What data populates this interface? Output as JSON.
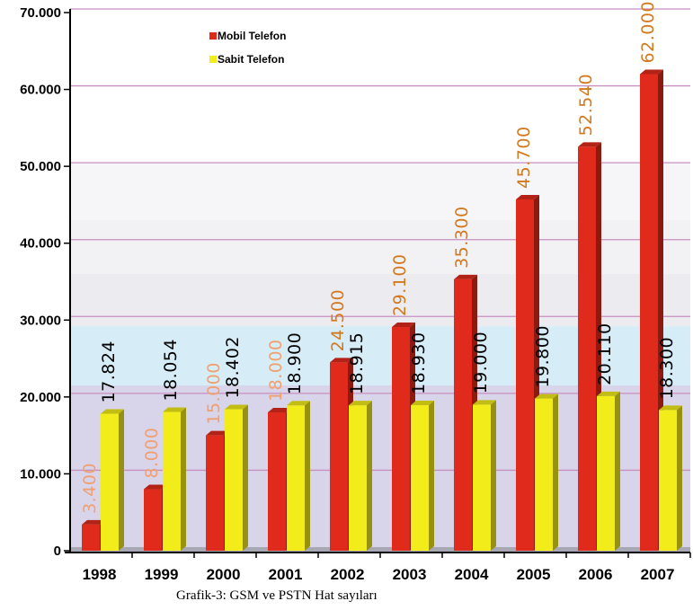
{
  "chart_data": {
    "type": "bar",
    "categories": [
      "1998",
      "1999",
      "2000",
      "2001",
      "2002",
      "2003",
      "2004",
      "2005",
      "2006",
      "2007"
    ],
    "series": [
      {
        "name": "Mobil Telefon",
        "color": "#e02a1c",
        "values": [
          3400,
          8000,
          15000,
          18000,
          24500,
          29100,
          35300,
          45700,
          52540,
          62000
        ],
        "labels": [
          "3.400",
          "8.000",
          "15.000",
          "18.000",
          "24.500",
          "29.100",
          "35.300",
          "45.700",
          "52.540",
          "62.000"
        ]
      },
      {
        "name": "Sabit Telefon",
        "color": "#f2ec1a",
        "values": [
          17824,
          18054,
          18402,
          18900,
          18915,
          18930,
          19000,
          19800,
          20110,
          18300
        ],
        "labels": [
          "17.824",
          "18.054",
          "18.402",
          "18.900",
          "18.915",
          "18.930",
          "19.000",
          "19.800",
          "20.110",
          "18.300"
        ]
      }
    ],
    "ylim": [
      0,
      70000
    ],
    "yticks": [
      0,
      10000,
      20000,
      30000,
      40000,
      50000,
      60000,
      70000
    ],
    "ytick_labels": [
      "0",
      "10.000",
      "20.000",
      "30.000",
      "40.000",
      "50.000",
      "60.000",
      "70.000"
    ],
    "grid": true,
    "legend_position": "top-left",
    "mobile_label_colors": [
      "#f0a070",
      "#f0a070",
      "#f0a070",
      "#f0a070",
      "#d4781e",
      "#d4781e",
      "#d4781e",
      "#d4781e",
      "#d4781e",
      "#d4781e"
    ],
    "fixed_label_color": "#000000",
    "caption": "Grafik-3: GSM ve PSTN Hat sayıları"
  }
}
